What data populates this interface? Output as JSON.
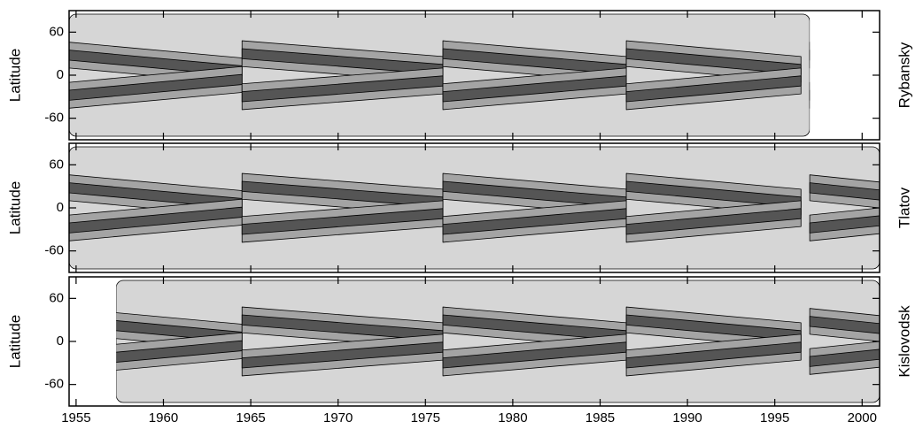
{
  "chart_data": {
    "type": "contour",
    "xlim": [
      1954.6,
      2001
    ],
    "xticks": [
      1955,
      1960,
      1965,
      1970,
      1975,
      1980,
      1985,
      1990,
      1995,
      2000
    ],
    "colors": {
      "low": "#d6d6d6",
      "mid": "#a4a4a4",
      "high": "#555555"
    },
    "panels": [
      {
        "name": "Rybansky",
        "ylabel": "Latitude",
        "ylim": [
          -90,
          90
        ],
        "yticks": [
          -60,
          0,
          60
        ],
        "coverage": [
          1954.6,
          1997
        ]
      },
      {
        "name": "Tlatov",
        "ylabel": "Latitude",
        "ylim": [
          -90,
          90
        ],
        "yticks": [
          -60,
          0,
          60
        ],
        "coverage": [
          1954.6,
          2001
        ]
      },
      {
        "name": "Kislovodsk",
        "ylabel": "Latitude",
        "ylim": [
          -90,
          90
        ],
        "yticks": [
          -60,
          0,
          60
        ],
        "coverage": [
          1957.3,
          2001
        ]
      }
    ],
    "wings": [
      {
        "x": [
          1954.6,
          1964.5
        ],
        "lat": [
          28,
          6
        ]
      },
      {
        "x": [
          1954.6,
          1964.5
        ],
        "lat": [
          -28,
          -6
        ]
      },
      {
        "x": [
          1964.5,
          1976
        ],
        "lat": [
          30,
          8
        ]
      },
      {
        "x": [
          1964.5,
          1976
        ],
        "lat": [
          -30,
          -8
        ]
      },
      {
        "x": [
          1976,
          1986.5
        ],
        "lat": [
          30,
          8
        ]
      },
      {
        "x": [
          1976,
          1986.5
        ],
        "lat": [
          -30,
          -8
        ]
      },
      {
        "x": [
          1986.5,
          1996.5
        ],
        "lat": [
          30,
          8
        ]
      },
      {
        "x": [
          1986.5,
          1996.5
        ],
        "lat": [
          -30,
          -8
        ]
      },
      {
        "x": [
          1997,
          2001
        ],
        "lat": [
          28,
          18
        ]
      },
      {
        "x": [
          1997,
          2001
        ],
        "lat": [
          -28,
          -18
        ]
      }
    ]
  }
}
